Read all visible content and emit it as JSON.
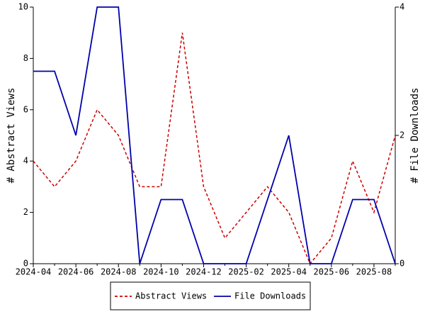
{
  "chart_data": {
    "type": "line",
    "categories": [
      "2024-04",
      null,
      "2024-06",
      null,
      "2024-08",
      null,
      "2024-10",
      null,
      "2024-12",
      null,
      "2025-02",
      null,
      "2025-04",
      null,
      "2025-06",
      null,
      "2025-08",
      null
    ],
    "ylabel": "# Abstract Views",
    "y2label": "# File Downloads",
    "ylim": [
      0,
      10
    ],
    "yticks": [
      0,
      2,
      4,
      6,
      8,
      10
    ],
    "y2lim": [
      0,
      4
    ],
    "y2ticks": [
      0,
      2,
      4
    ],
    "grid": false,
    "legend": "bottom",
    "series": [
      {
        "name": "Abstract Views",
        "color": "#cc0000",
        "line_style": "dashed",
        "axis": "y",
        "values": [
          4,
          3,
          4,
          6,
          5,
          3,
          3,
          9,
          3,
          1,
          2,
          3,
          2,
          0,
          1,
          4,
          2,
          5
        ]
      },
      {
        "name": "File Downloads",
        "color": "#0000aa",
        "line_style": "solid",
        "axis": "y2",
        "values": [
          3,
          3,
          2,
          4,
          4,
          0,
          1,
          1,
          0,
          0,
          0,
          1,
          2,
          0,
          0,
          1,
          1,
          0
        ]
      }
    ]
  }
}
